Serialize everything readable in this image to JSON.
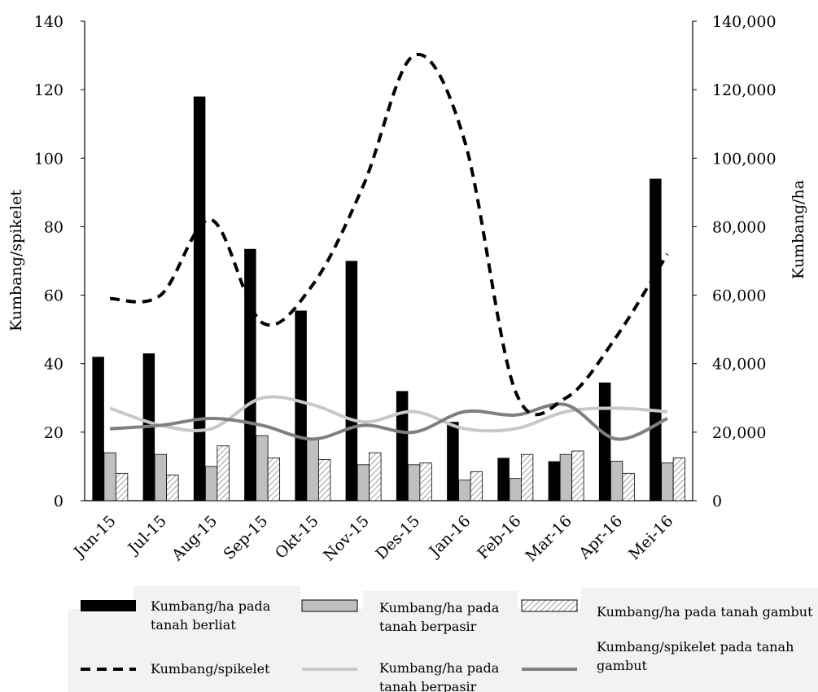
{
  "colors": {
    "bar_clay": "#000000",
    "bar_sandy": "#bfbfbf",
    "bar_peat_hatch": "#a6a6a6",
    "line_spikelet": "#000000",
    "line_sandy": "#c8c8c8",
    "line_peat": "#7f7f7f",
    "legend_bg": "#f2f2f2"
  },
  "chart_data": {
    "type": "bar",
    "categories": [
      "Jun-15",
      "Jul-15",
      "Aug-15",
      "Sep-15",
      "Okt-15",
      "Nov-15",
      "Des-15",
      "Jan-16",
      "Feb-16",
      "Mar-16",
      "Apr-16",
      "Mei-16"
    ],
    "ylabel_left": "Kumbang/spikelet",
    "ylabel_right": "Kumbang/ha",
    "ylim_left": [
      0,
      140
    ],
    "ylim_right": [
      0,
      140000
    ],
    "yticks_left": [
      "0",
      "20",
      "40",
      "60",
      "80",
      "100",
      "120",
      "140"
    ],
    "yticks_right": [
      "0",
      "20,000",
      "40,000",
      "60,000",
      "80,000",
      "100,000",
      "120,000",
      "140,000"
    ],
    "series": [
      {
        "name": "Kumbang/ha pada tanah berliat",
        "type": "bar",
        "axis": "right",
        "style": "solid-black",
        "values": [
          42000,
          43000,
          118000,
          73500,
          55500,
          70000,
          32000,
          23000,
          12500,
          11500,
          34500,
          94000
        ]
      },
      {
        "name": "Kumbang/ha pada tanah berpasir",
        "type": "bar",
        "axis": "right",
        "style": "grey",
        "values": [
          14000,
          13500,
          10000,
          19000,
          18000,
          10500,
          10500,
          6000,
          6500,
          13500,
          11500,
          11000
        ]
      },
      {
        "name": "Kumbang/ha pada tanah gambut",
        "type": "bar",
        "axis": "right",
        "style": "hatched",
        "values": [
          8000,
          7500,
          16000,
          12500,
          12000,
          14000,
          11000,
          8500,
          13500,
          14500,
          8000,
          12500
        ]
      },
      {
        "name": "Kumbang/spikelet",
        "type": "line",
        "axis": "left",
        "style": "dashed-black",
        "values": [
          59,
          60,
          82,
          52,
          63,
          92,
          130,
          105,
          32,
          30,
          48,
          72
        ]
      },
      {
        "name": "Kumbang/ha pada tanah berpasir",
        "type": "line",
        "axis": "left",
        "style": "light-grey",
        "values": [
          27,
          22,
          21,
          30,
          28,
          23,
          26,
          21,
          21,
          26,
          27,
          26
        ]
      },
      {
        "name": "Kumbang/spikelet pada tanah gambut",
        "type": "line",
        "axis": "left",
        "style": "dark-grey",
        "values": [
          21,
          22,
          24,
          22,
          18,
          22,
          20,
          26,
          25,
          28,
          18,
          24
        ]
      }
    ],
    "legend": [
      {
        "label_lines": [
          "Kumbang/ha pada",
          "tanah berliat"
        ],
        "swatch": "bar-black"
      },
      {
        "label_lines": [
          "Kumbang/ha pada",
          "tanah berpasir"
        ],
        "swatch": "bar-grey"
      },
      {
        "label_lines": [
          "Kumbang/ha pada tanah gambut"
        ],
        "swatch": "bar-hatched"
      },
      {
        "label_lines": [
          "Kumbang/spikelet"
        ],
        "swatch": "line-dashed"
      },
      {
        "label_lines": [
          "Kumbang/ha pada",
          "tanah berpasir"
        ],
        "swatch": "line-lightgrey"
      },
      {
        "label_lines": [
          "Kumbang/spikelet pada tanah",
          "gambut"
        ],
        "swatch": "line-darkgrey"
      }
    ],
    "grid": false,
    "legend_position": "bottom"
  }
}
